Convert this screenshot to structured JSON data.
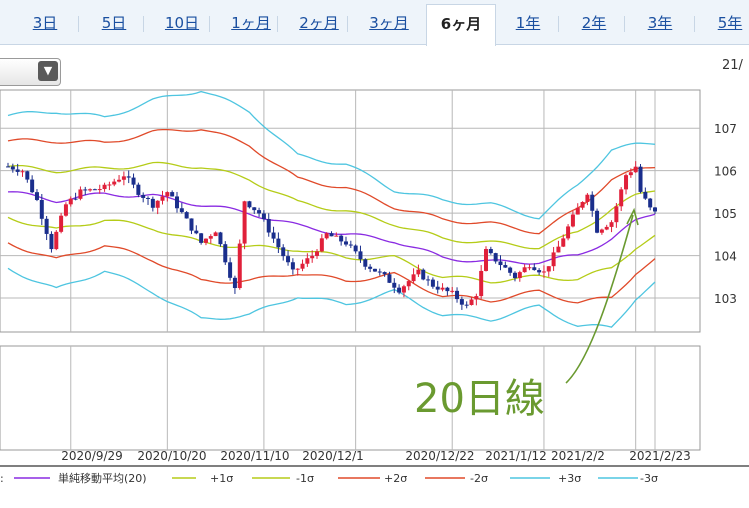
{
  "tabs": [
    {
      "label": "3日",
      "active": false
    },
    {
      "label": "5日",
      "active": false
    },
    {
      "label": "10日",
      "active": false
    },
    {
      "label": "1ヶ月",
      "active": false
    },
    {
      "label": "2ヶ月",
      "active": false
    },
    {
      "label": "3ヶ月",
      "active": false
    },
    {
      "label": "6ヶ月",
      "active": true
    },
    {
      "label": "1年",
      "active": false
    },
    {
      "label": "2年",
      "active": false
    },
    {
      "label": "3年",
      "active": false
    },
    {
      "label": "5年",
      "active": false
    }
  ],
  "top_right_date": "21/",
  "annotation": "20日線",
  "colors": {
    "up": "#e0203a",
    "down": "#1a2e8c",
    "sma": "#8a2be2",
    "s1": "#b5cc18",
    "s2": "#e04a2a",
    "s3": "#4ec5e0",
    "annotation": "#6a9a30",
    "grid": "#b8b8b8"
  },
  "legend": [
    {
      "label": "単純移動平均(20)",
      "color": "#8a2be2"
    },
    {
      "label": "+1σ",
      "color": "#b5cc18"
    },
    {
      "label": "-1σ",
      "color": "#b5cc18"
    },
    {
      "label": "+2σ",
      "color": "#e04a2a"
    },
    {
      "label": "-2σ",
      "color": "#e04a2a"
    },
    {
      "label": "+3σ",
      "color": "#4ec5e0"
    },
    {
      "label": "-3σ",
      "color": "#4ec5e0"
    }
  ],
  "chart_data": {
    "type": "candlestick",
    "title": "",
    "ylim": [
      102.2,
      107.9
    ],
    "y_ticks": [
      103,
      104,
      105,
      106,
      107
    ],
    "x_ticks": [
      "2020/9/29",
      "2020/10/20",
      "2020/11/10",
      "2020/12/1",
      "2020/12/22",
      "2021/1/12",
      "2021/2/2",
      "2021/2/23"
    ],
    "sma20": [
      [
        0,
        105.5
      ],
      [
        10,
        105.3
      ],
      [
        20,
        105.45
      ],
      [
        30,
        105.4
      ],
      [
        40,
        105.2
      ],
      [
        50,
        105.0
      ],
      [
        60,
        104.7
      ],
      [
        70,
        104.5
      ],
      [
        80,
        104.35
      ],
      [
        90,
        103.95
      ],
      [
        100,
        103.85
      ],
      [
        110,
        103.85
      ],
      [
        118,
        104.0
      ],
      [
        125,
        104.4
      ],
      [
        130,
        104.8
      ],
      [
        134,
        105.0
      ]
    ],
    "sigma": [
      [
        0,
        0.6
      ],
      [
        10,
        0.7
      ],
      [
        20,
        0.6
      ],
      [
        30,
        0.75
      ],
      [
        40,
        0.9
      ],
      [
        50,
        0.8
      ],
      [
        60,
        0.55
      ],
      [
        70,
        0.55
      ],
      [
        80,
        0.4
      ],
      [
        90,
        0.45
      ],
      [
        100,
        0.45
      ],
      [
        110,
        0.35
      ],
      [
        118,
        0.55
      ],
      [
        125,
        0.7
      ],
      [
        130,
        0.6
      ],
      [
        134,
        0.55
      ]
    ],
    "anchors": [
      [
        0,
        106.1
      ],
      [
        3,
        106.0
      ],
      [
        6,
        105.3
      ],
      [
        9,
        104.2
      ],
      [
        12,
        105.2
      ],
      [
        15,
        105.5
      ],
      [
        20,
        105.6
      ],
      [
        24,
        105.9
      ],
      [
        27,
        105.5
      ],
      [
        30,
        105.2
      ],
      [
        33,
        105.5
      ],
      [
        36,
        105.0
      ],
      [
        40,
        104.3
      ],
      [
        43,
        104.6
      ],
      [
        47,
        103.2
      ],
      [
        49,
        105.3
      ],
      [
        52,
        105.0
      ],
      [
        56,
        104.2
      ],
      [
        59,
        103.6
      ],
      [
        63,
        104.0
      ],
      [
        66,
        104.5
      ],
      [
        70,
        104.3
      ],
      [
        74,
        103.8
      ],
      [
        78,
        103.5
      ],
      [
        81,
        103.2
      ],
      [
        85,
        103.6
      ],
      [
        88,
        103.3
      ],
      [
        92,
        103.1
      ],
      [
        95,
        102.8
      ],
      [
        97,
        103.1
      ],
      [
        99,
        104.1
      ],
      [
        102,
        103.8
      ],
      [
        105,
        103.5
      ],
      [
        108,
        103.8
      ],
      [
        111,
        103.6
      ],
      [
        114,
        104.2
      ],
      [
        117,
        104.9
      ],
      [
        120,
        105.5
      ],
      [
        122,
        104.6
      ],
      [
        125,
        104.8
      ],
      [
        128,
        105.9
      ],
      [
        130,
        106.1
      ],
      [
        131,
        105.5
      ],
      [
        133,
        105.1
      ],
      [
        134,
        105.0
      ]
    ]
  }
}
